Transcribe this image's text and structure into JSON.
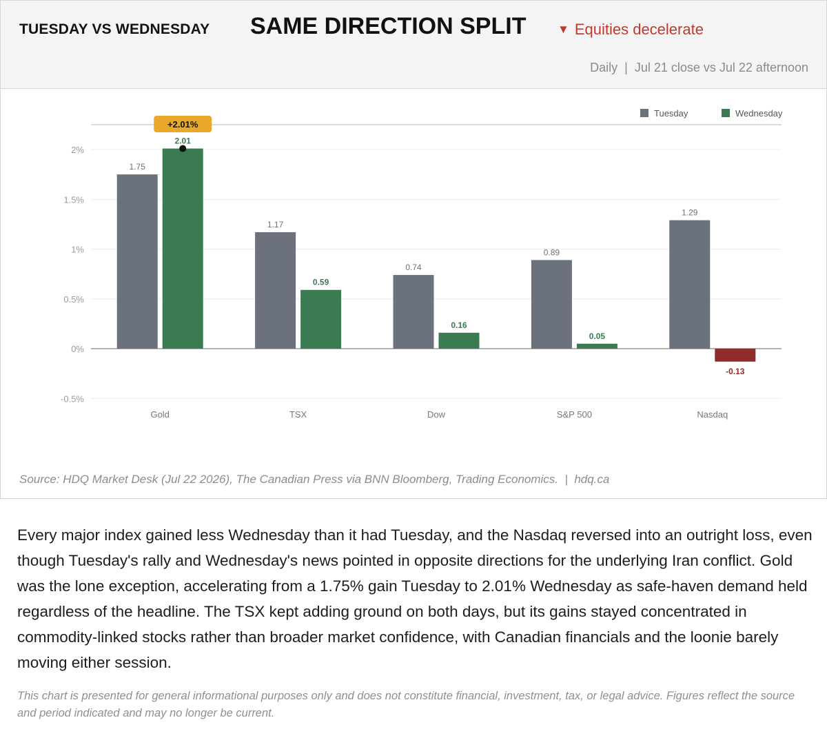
{
  "header": {
    "kicker": "TUESDAY VS WEDNESDAY",
    "headline": "SAME DIRECTION SPLIT",
    "tag_icon": "▼",
    "tag_text": "Equities decelerate",
    "subline": "Daily  |  Jul 21 close vs Jul 22 afternoon"
  },
  "chart_data": {
    "type": "bar",
    "categories": [
      "Gold",
      "TSX",
      "Dow",
      "S&P 500",
      "Nasdaq"
    ],
    "series": [
      {
        "name": "Tuesday",
        "values": [
          1.75,
          1.17,
          0.74,
          0.89,
          1.29
        ],
        "labels": [
          "1.75",
          "1.17",
          "0.74",
          "0.89",
          "1.29"
        ],
        "color": "#6b717d"
      },
      {
        "name": "Wednesday",
        "values": [
          2.01,
          0.59,
          0.16,
          0.05,
          -0.13
        ],
        "labels": [
          "2.01",
          "0.59",
          "0.16",
          "0.05",
          "-0.13"
        ],
        "color": "#3a7b52",
        "negative_color": "#8e2c2c"
      }
    ],
    "ylim": [
      -0.5,
      2.25
    ],
    "yticks": [
      -0.5,
      0,
      0.5,
      1,
      1.5,
      2
    ],
    "ytick_labels": [
      "-0.5%",
      "0%",
      "0.5%",
      "1%",
      "1.5%",
      "2%"
    ],
    "grid": true,
    "legend": "top-right",
    "annotation": {
      "category": "Gold",
      "series": "Wednesday",
      "value": 2.01,
      "text": "+2.01%",
      "color": "#e8a82a"
    }
  },
  "source_text": "Source: HDQ Market Desk (Jul 22 2026), The Canadian Press via BNN Bloomberg, Trading Economics.  |  hdq.ca",
  "body_text": "Every major index gained less Wednesday than it had Tuesday, and the Nasdaq reversed into an outright loss, even though Tuesday's rally and Wednesday's news pointed in opposite directions for the underlying Iran conflict. Gold was the lone exception, accelerating from a 1.75% gain Tuesday to 2.01% Wednesday as safe-haven demand held regardless of the headline. The TSX kept adding ground on both days, but its gains stayed concentrated in commodity-linked stocks rather than broader market confidence, with Canadian financials and the loonie barely moving either session.",
  "disclaimer": "This chart is presented for general informational purposes only and does not constitute financial, investment, tax, or legal advice. Figures reflect the source and period indicated and may no longer be current."
}
